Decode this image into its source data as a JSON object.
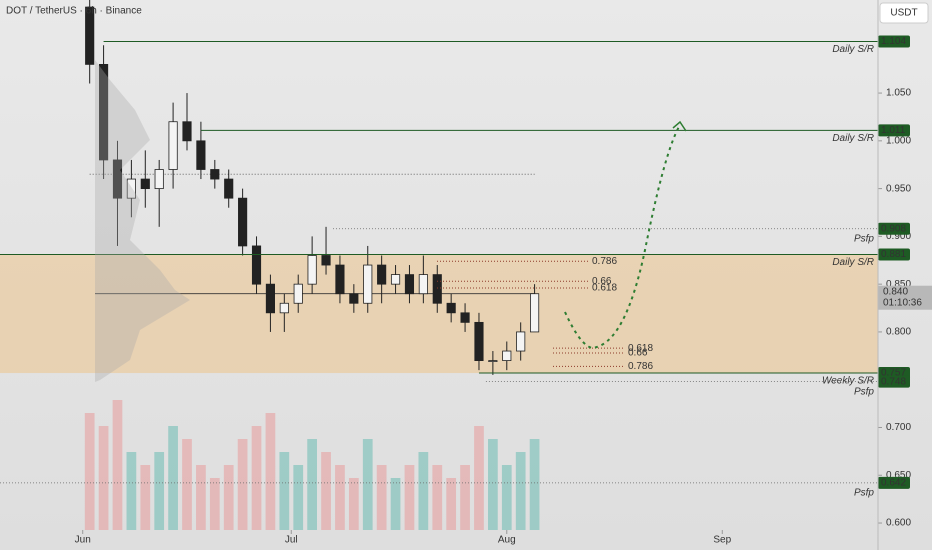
{
  "chart_data": {
    "type": "candlestick",
    "title": "DOT / TetherUS · 6h · Binance",
    "currency": "USDT",
    "xlim": [
      -11.9,
      114.4
    ],
    "xticks": [
      {
        "value": 0,
        "label": "Jun"
      },
      {
        "value": 30,
        "label": "Jul"
      },
      {
        "value": 61,
        "label": "Aug"
      },
      {
        "value": 92,
        "label": "Sep"
      }
    ],
    "ylim": [
      0.5927,
      1.1474
    ],
    "yticks": [
      {
        "value": 1.05,
        "label": "1.050"
      },
      {
        "value": 1.0,
        "label": "1.000"
      },
      {
        "value": 0.95,
        "label": "0.950"
      },
      {
        "value": 0.9,
        "label": "0.900"
      },
      {
        "value": 0.85,
        "label": "0.850"
      },
      {
        "value": 0.8,
        "label": "0.800"
      },
      {
        "value": 0.7,
        "label": "0.700"
      },
      {
        "value": 0.65,
        "label": "0.650"
      },
      {
        "value": 0.6,
        "label": "0.600"
      }
    ],
    "candles": {
      "x": [
        1,
        3,
        5,
        7,
        9,
        11,
        13,
        15,
        17,
        19,
        21,
        23,
        25,
        27,
        29,
        31,
        33,
        35,
        37,
        39,
        41,
        43,
        45,
        47,
        49,
        51,
        53,
        55,
        57,
        59,
        61,
        63,
        65
      ],
      "open": [
        1.14,
        1.08,
        0.98,
        0.94,
        0.96,
        0.95,
        0.97,
        1.02,
        1.0,
        0.97,
        0.96,
        0.94,
        0.89,
        0.85,
        0.82,
        0.83,
        0.85,
        0.88,
        0.87,
        0.84,
        0.83,
        0.87,
        0.85,
        0.86,
        0.84,
        0.86,
        0.83,
        0.82,
        0.81,
        0.77,
        0.77,
        0.78,
        0.8
      ],
      "high": [
        1.15,
        1.1,
        1.0,
        0.98,
        0.99,
        0.98,
        1.04,
        1.05,
        1.02,
        0.98,
        0.97,
        0.95,
        0.9,
        0.86,
        0.84,
        0.86,
        0.9,
        0.91,
        0.88,
        0.85,
        0.89,
        0.88,
        0.87,
        0.87,
        0.88,
        0.87,
        0.84,
        0.83,
        0.82,
        0.78,
        0.79,
        0.81,
        0.85
      ],
      "low": [
        1.06,
        0.96,
        0.89,
        0.92,
        0.93,
        0.91,
        0.95,
        0.99,
        0.96,
        0.95,
        0.93,
        0.88,
        0.84,
        0.8,
        0.8,
        0.82,
        0.84,
        0.86,
        0.83,
        0.82,
        0.82,
        0.83,
        0.84,
        0.83,
        0.83,
        0.82,
        0.81,
        0.8,
        0.76,
        0.755,
        0.76,
        0.77,
        0.8
      ],
      "close": [
        1.08,
        0.98,
        0.94,
        0.96,
        0.95,
        0.97,
        1.02,
        1.0,
        0.97,
        0.96,
        0.94,
        0.89,
        0.85,
        0.82,
        0.83,
        0.85,
        0.88,
        0.87,
        0.84,
        0.83,
        0.87,
        0.85,
        0.86,
        0.84,
        0.86,
        0.83,
        0.82,
        0.81,
        0.77,
        0.77,
        0.78,
        0.8,
        0.84
      ],
      "volume": [
        9,
        8,
        10,
        6,
        5,
        6,
        8,
        7,
        5,
        4,
        5,
        7,
        8,
        9,
        6,
        5,
        7,
        6,
        5,
        4,
        7,
        5,
        4,
        5,
        6,
        5,
        4,
        5,
        8,
        7,
        5,
        6,
        7
      ]
    },
    "zone": [
      0.757,
      0.881
    ],
    "levels": [
      {
        "value": 1.104,
        "name": "Daily S/R",
        "from": 3,
        "style": "solid"
      },
      {
        "value": 1.011,
        "name": "Daily S/R",
        "from": 17,
        "style": "solid"
      },
      {
        "value": 0.908,
        "name": "Psfp",
        "from": 36,
        "style": "dotted"
      },
      {
        "value": 0.881,
        "name": "Daily S/R",
        "from": -11.9,
        "style": "solid"
      },
      {
        "value": 0.757,
        "name": "Weekly S/R",
        "from": 57,
        "style": "solid"
      },
      {
        "value": 0.748,
        "name": "Psfp",
        "from": 58,
        "style": "dotted"
      },
      {
        "value": 0.642,
        "name": "Psfp",
        "from": -11.9,
        "style": "dotted"
      }
    ],
    "fibs": [
      {
        "label": "0.786",
        "price": 0.874
      },
      {
        "label": "0.66",
        "price": 0.853
      },
      {
        "label": "0.618",
        "price": 0.846
      },
      {
        "label": "0.618",
        "price": 0.783
      },
      {
        "label": "0.66",
        "price": 0.778
      },
      {
        "label": "0.786",
        "price": 0.764
      }
    ],
    "last_price": {
      "value": 0.84,
      "label": "0.840",
      "countdown": "01:10:36"
    },
    "level_color": "#1e5b24",
    "zone_color": "rgba(236,196,140,0.55)"
  }
}
